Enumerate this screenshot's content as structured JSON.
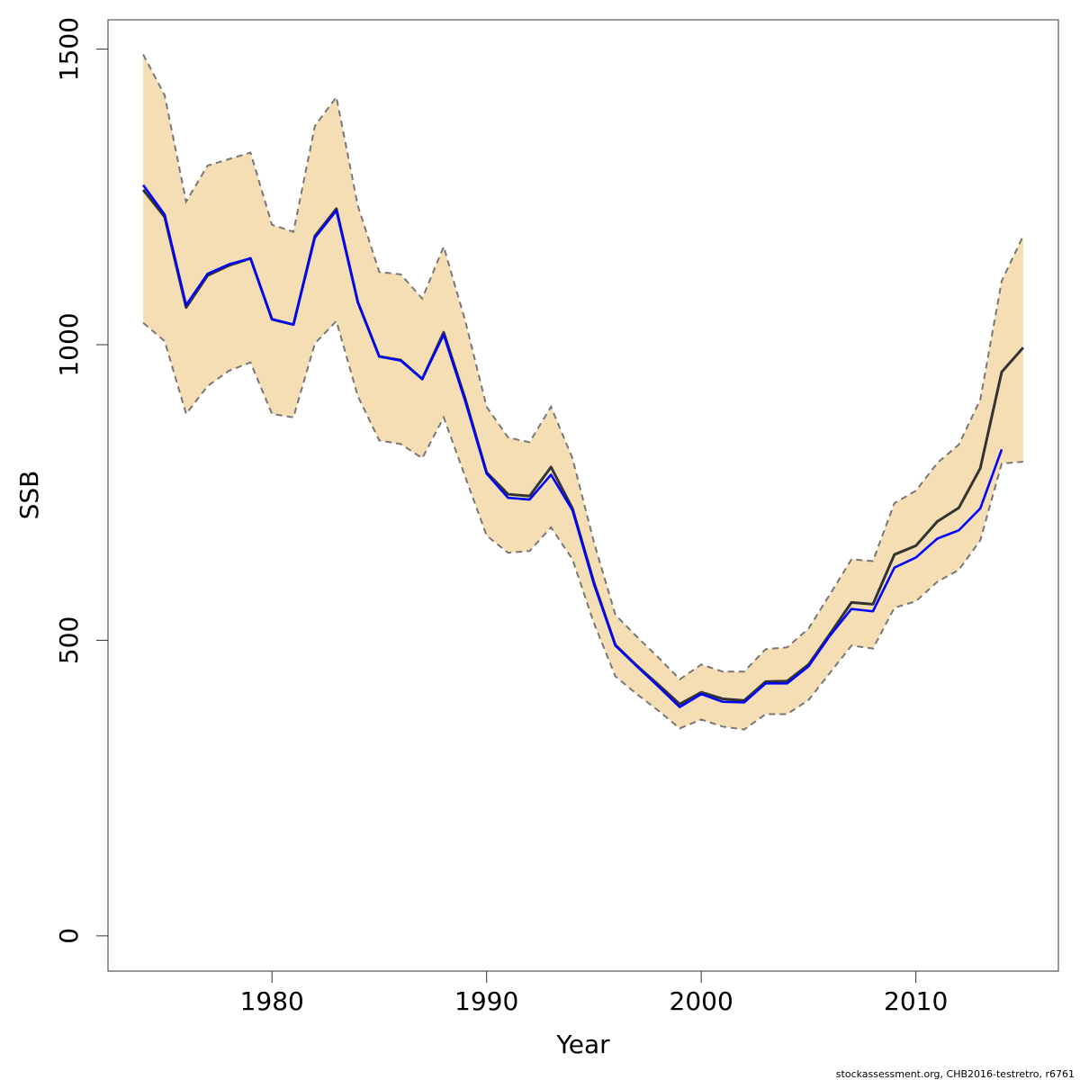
{
  "chart_data": {
    "type": "line",
    "xlabel": "Year",
    "ylabel": "SSB",
    "caption": "stockassessment.org, CHB2016-testretro, r6761",
    "x": [
      1974,
      1975,
      1976,
      1977,
      1978,
      1979,
      1980,
      1981,
      1982,
      1983,
      1984,
      1985,
      1986,
      1987,
      1988,
      1989,
      1990,
      1991,
      1992,
      1993,
      1994,
      1995,
      1996,
      1997,
      1998,
      1999,
      2000,
      2001,
      2002,
      2003,
      2004,
      2005,
      2006,
      2007,
      2008,
      2009,
      2010,
      2011,
      2012,
      2013,
      2014,
      2015
    ],
    "band": {
      "color": "#f5deb3",
      "line_color": "#777777",
      "upper": [
        1491,
        1422,
        1242,
        1303,
        1314,
        1325,
        1203,
        1191,
        1370,
        1419,
        1235,
        1123,
        1119,
        1078,
        1166,
        1041,
        895,
        843,
        835,
        895,
        808,
        666,
        543,
        506,
        471,
        434,
        459,
        447,
        447,
        485,
        488,
        520,
        578,
        637,
        634,
        732,
        753,
        800,
        831,
        907,
        1108,
        1184
      ],
      "lower": [
        1037,
        1006,
        883,
        930,
        956,
        970,
        883,
        877,
        1002,
        1040,
        913,
        838,
        832,
        808,
        877,
        777,
        677,
        648,
        651,
        691,
        637,
        529,
        439,
        409,
        381,
        351,
        366,
        354,
        349,
        375,
        375,
        399,
        445,
        491,
        486,
        555,
        566,
        599,
        619,
        669,
        799,
        802
      ]
    },
    "series": [
      {
        "color": "#333333",
        "values": [
          1262,
          1216,
          1063,
          1117,
          1134,
          1146,
          1043,
          1034,
          1184,
          1230,
          1072,
          980,
          974,
          942,
          1021,
          909,
          784,
          747,
          744,
          793,
          723,
          598,
          492,
          457,
          425,
          392,
          412,
          401,
          398,
          430,
          431,
          459,
          511,
          564,
          561,
          645,
          660,
          701,
          724,
          791,
          954,
          995
        ]
      },
      {
        "color": "#0000ff",
        "values": [
          1270,
          1220,
          1067,
          1120,
          1136,
          1146,
          1043,
          1034,
          1181,
          1227,
          1072,
          980,
          973,
          942,
          1017,
          905,
          782,
          741,
          738,
          780,
          720,
          595,
          491,
          456,
          422,
          387,
          409,
          396,
          395,
          427,
          427,
          456,
          508,
          553,
          549,
          623,
          640,
          672,
          686,
          723,
          823,
          null
        ]
      }
    ],
    "xlim": [
      1972.36,
      2016.64
    ],
    "xticks": [
      1980,
      1990,
      2000,
      2010
    ],
    "ylim": [
      -59.6,
      1549.6
    ],
    "yticks": [
      0,
      500,
      1000,
      1500
    ]
  }
}
